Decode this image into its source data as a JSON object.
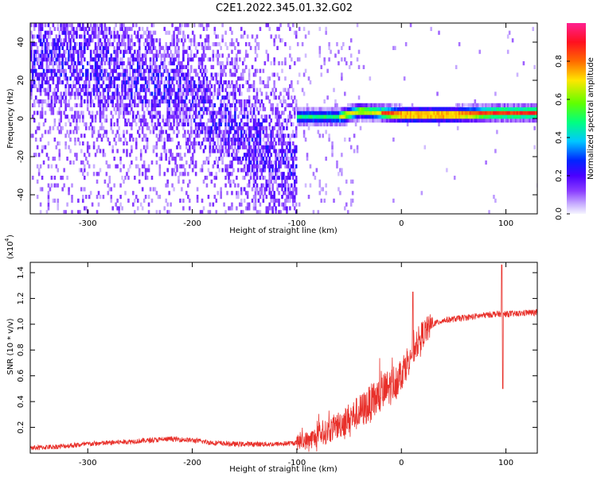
{
  "figure": {
    "title": "C2E1.2022.345.01.32.G02"
  },
  "chart_data": [
    {
      "type": "heatmap",
      "description_kind": "spectrogram",
      "xlabel": "Height of straight line (km)",
      "ylabel": "Frequency (Hz)",
      "xlim": [
        -355,
        130
      ],
      "ylim": [
        -50,
        50
      ],
      "xticks": [
        -300,
        -200,
        -100,
        0,
        100
      ],
      "yticks": [
        -40,
        -20,
        0,
        20,
        40
      ],
      "grid": false,
      "colormap": [
        "#f5f5ff",
        "#c9b0ff",
        "#8a3dff",
        "#4a00ff",
        "#0025ff",
        "#00c8ff",
        "#00ff80",
        "#60ff00",
        "#ffe600",
        "#ff6a00",
        "#ff1020",
        "#ff2090"
      ],
      "colorbar": {
        "label": "Normalized spectral amplitude",
        "range": [
          0.0,
          1.0
        ],
        "ticks": [
          0.0,
          0.2,
          0.4,
          0.6,
          0.8
        ]
      },
      "features": {
        "diffuse_noise_region_km": [
          -355,
          -100
        ],
        "noise_band_trend_hz": [
          [
            -320,
            30
          ],
          [
            -200,
            10
          ],
          [
            -110,
            -25
          ]
        ],
        "tone_onset_km": -100,
        "tone_frequency_hz": [
          [
            -100,
            0
          ],
          [
            -60,
            0
          ],
          [
            -40,
            3
          ],
          [
            -20,
            2
          ],
          [
            0,
            1
          ],
          [
            50,
            1
          ],
          [
            90,
            2
          ],
          [
            130,
            2
          ]
        ]
      }
    },
    {
      "type": "line",
      "xlabel": "Height of straight line (km)",
      "ylabel": "SNR (10 * v/v)",
      "yscale_label": "(x10",
      "yscale_exp": "4",
      "xlim": [
        -355,
        130
      ],
      "ylim": [
        0,
        1.48
      ],
      "xticks": [
        -300,
        -200,
        -100,
        0,
        100
      ],
      "yticks": [
        0.2,
        0.4,
        0.6,
        0.8,
        1.0,
        1.2,
        1.4
      ],
      "grid": false,
      "series": [
        {
          "color": "#e8302a",
          "x": [
            -355,
            -330,
            -300,
            -280,
            -260,
            -240,
            -220,
            -200,
            -180,
            -160,
            -140,
            -120,
            -100,
            -90,
            -80,
            -70,
            -60,
            -50,
            -40,
            -30,
            -20,
            -10,
            0,
            10,
            20,
            30,
            40,
            50,
            60,
            70,
            80,
            90,
            100,
            110,
            120,
            130
          ],
          "y": [
            0.04,
            0.05,
            0.07,
            0.08,
            0.09,
            0.1,
            0.11,
            0.1,
            0.08,
            0.07,
            0.07,
            0.07,
            0.08,
            0.1,
            0.13,
            0.17,
            0.22,
            0.27,
            0.32,
            0.38,
            0.45,
            0.52,
            0.62,
            0.78,
            0.92,
            1.0,
            1.03,
            1.04,
            1.05,
            1.06,
            1.07,
            1.08,
            1.08,
            1.08,
            1.09,
            1.09
          ],
          "spikes": [
            [
              11,
              1.25
            ],
            [
              96,
              1.46
            ],
            [
              97,
              0.5
            ]
          ]
        }
      ]
    }
  ]
}
